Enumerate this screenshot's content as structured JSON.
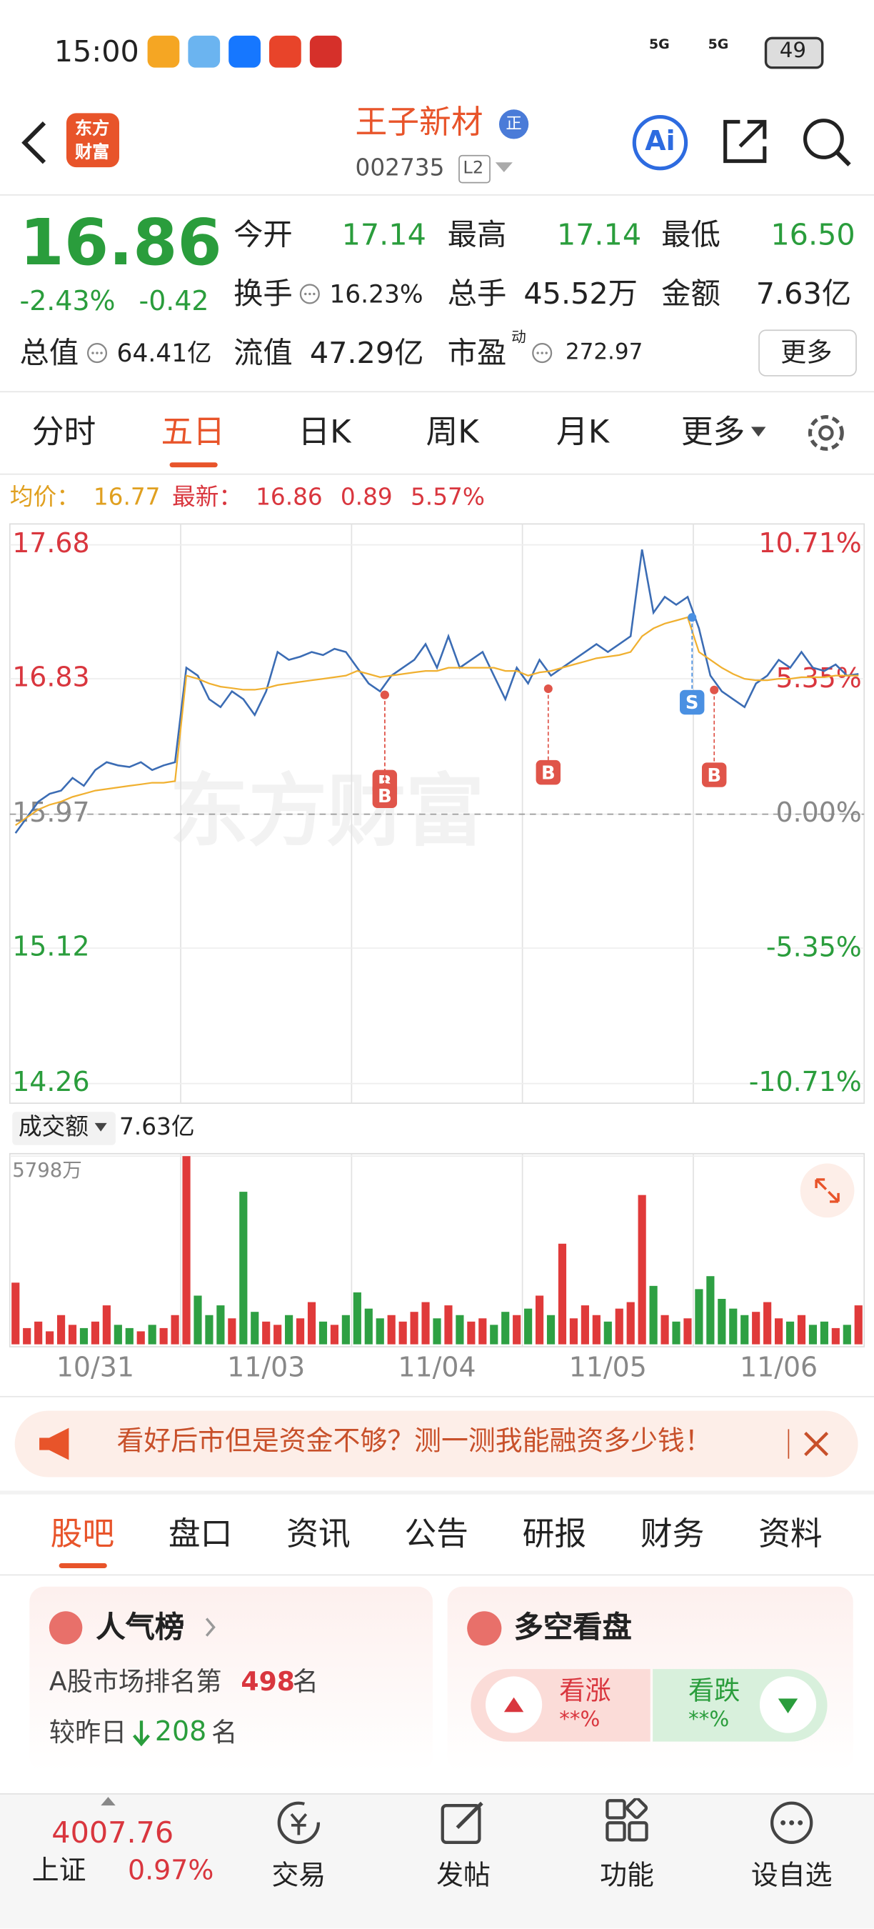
{
  "status": {
    "time": "15:00",
    "network": [
      "5G",
      "5G"
    ],
    "battery": "49"
  },
  "header": {
    "logo": [
      "东方",
      "财富"
    ],
    "title": "王子新材",
    "badge": "正",
    "code": "002735",
    "level": "L2",
    "ai": "Ai"
  },
  "quote": {
    "price": "16.86",
    "change_pct": "-2.43%",
    "change": "-0.42",
    "stats": [
      [
        "今开",
        "17.14"
      ],
      [
        "最高",
        "17.14"
      ],
      [
        "最低",
        "16.50"
      ],
      [
        "换手",
        "16.23%"
      ],
      [
        "总手",
        "45.52万"
      ],
      [
        "金额",
        "7.63亿"
      ],
      [
        "总值",
        "64.41亿"
      ],
      [
        "流值",
        "47.29亿"
      ],
      [
        "市盈",
        "272.97"
      ]
    ],
    "pe_note": "动",
    "more": "更多"
  },
  "chart_tabs": [
    "分时",
    "五日",
    "日K",
    "周K",
    "月K",
    "更多"
  ],
  "legend": {
    "avg_label": "均价：",
    "avg": "16.77",
    "last_label": "最新：",
    "last": "16.86",
    "change": "0.89",
    "change_pct": "5.57%"
  },
  "chart_data": [
    {
      "type": "line",
      "watermark": "东方财富",
      "x_labels": [
        "10/31",
        "11/03",
        "11/04",
        "11/05",
        "11/06"
      ],
      "ylim": [
        14.26,
        17.68
      ],
      "yticks": [
        17.68,
        16.83,
        15.97,
        15.12,
        14.26
      ],
      "y2lim": [
        -10.71,
        10.71
      ],
      "y2ticks": [
        {
          "value": 10.71,
          "label": "10.71%"
        },
        {
          "value": 5.35,
          "label": "5.35%"
        },
        {
          "value": 0,
          "label": "0.00%"
        },
        {
          "value": -5.35,
          "label": "-5.35%"
        },
        {
          "value": -10.71,
          "label": "-10.71%"
        }
      ],
      "series": [
        {
          "color": "#3b6cb4",
          "values": [
            15.85,
            15.95,
            16.05,
            16.1,
            16.12,
            16.2,
            16.15,
            16.25,
            16.3,
            16.28,
            16.27,
            16.3,
            16.25,
            16.28,
            16.3,
            16.9,
            16.85,
            16.7,
            16.65,
            16.75,
            16.7,
            16.6,
            16.75,
            17.0,
            16.95,
            16.97,
            17.0,
            16.98,
            17.02,
            17.0,
            16.9,
            16.8,
            16.75,
            16.85,
            16.9,
            16.95,
            17.05,
            16.9,
            17.1,
            16.9,
            16.95,
            17.0,
            16.85,
            16.7,
            16.9,
            16.8,
            16.95,
            16.85,
            16.9,
            16.95,
            17.0,
            17.05,
            17.0,
            17.05,
            17.1,
            17.65,
            17.25,
            17.35,
            17.3,
            17.35,
            17.15,
            16.85,
            16.75,
            16.7,
            16.65,
            16.8,
            16.85,
            16.95,
            16.9,
            17.0,
            16.9,
            16.88,
            16.92,
            16.85,
            16.86
          ]
        },
        {
          "color": "#f0b030",
          "values": [
            15.9,
            15.95,
            16.0,
            16.03,
            16.05,
            16.08,
            16.1,
            16.12,
            16.13,
            16.14,
            16.15,
            16.16,
            16.17,
            16.17,
            16.18,
            16.85,
            16.83,
            16.8,
            16.78,
            16.77,
            16.76,
            16.76,
            16.77,
            16.79,
            16.8,
            16.81,
            16.82,
            16.83,
            16.84,
            16.85,
            16.88,
            16.86,
            16.84,
            16.85,
            16.86,
            16.87,
            16.88,
            16.88,
            16.9,
            16.9,
            16.9,
            16.9,
            16.9,
            16.88,
            16.88,
            16.85,
            16.87,
            16.88,
            16.9,
            16.92,
            16.94,
            16.96,
            16.97,
            16.98,
            17.0,
            17.1,
            17.15,
            17.18,
            17.2,
            17.22,
            17.0,
            16.95,
            16.9,
            16.86,
            16.83,
            16.82,
            16.82,
            16.83,
            16.83,
            16.84,
            16.84,
            16.84,
            16.85,
            16.85,
            16.85
          ]
        }
      ],
      "markers": [
        "B",
        "B",
        "B",
        "S",
        "B"
      ]
    },
    {
      "type": "bar",
      "label": "成交额",
      "total": "7.63亿",
      "ylim": [
        0,
        5798
      ],
      "yticks": [
        {
          "value": 5798,
          "label": "5798万"
        }
      ],
      "up_color": "#e03a3a",
      "down_color": "#2ea043",
      "values": [
        1900,
        500,
        700,
        400,
        900,
        600,
        500,
        700,
        1200,
        600,
        500,
        400,
        600,
        500,
        900,
        5798,
        1500,
        900,
        1200,
        800,
        4700,
        1000,
        700,
        600,
        900,
        800,
        1300,
        700,
        600,
        900,
        1600,
        1100,
        800,
        900,
        700,
        1000,
        1300,
        800,
        1200,
        900,
        700,
        800,
        600,
        1000,
        900,
        1100,
        1500,
        900,
        3100,
        800,
        1200,
        900,
        700,
        1100,
        1300,
        4600,
        1800,
        900,
        700,
        800,
        1700,
        2100,
        1400,
        1100,
        900,
        1000,
        1300,
        800,
        700,
        900,
        600,
        700,
        500,
        600,
        1200
      ]
    }
  ],
  "banner": "看好后市但是资金不够？测一测我能融资多少钱！",
  "info_tabs": [
    "股吧",
    "盘口",
    "资讯",
    "公告",
    "研报",
    "财务",
    "资料"
  ],
  "popularity": {
    "title": "人气榜",
    "rank_prefix": "A股市场排名第",
    "rank": "498",
    "rank_suffix": "名",
    "delta_prefix": "较昨日",
    "delta": "208",
    "delta_suffix": "名"
  },
  "sentiment": {
    "title": "多空看盘",
    "up": "看涨",
    "up_value": "**%",
    "down": "看跌",
    "down_value": "**%"
  },
  "nav": {
    "index_value": "4007.76",
    "index_name": "上证",
    "index_change": "0.97%",
    "items": [
      "交易",
      "发帖",
      "功能",
      "设自选"
    ]
  }
}
